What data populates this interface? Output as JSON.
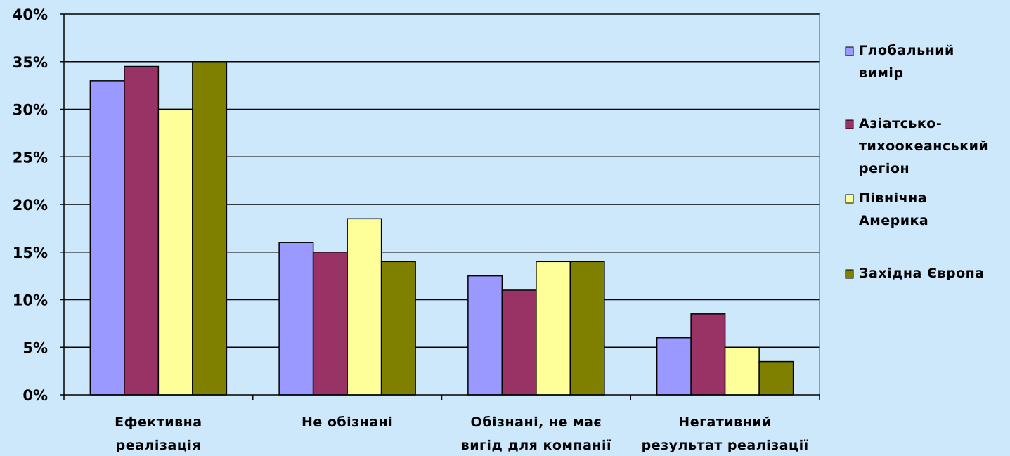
{
  "chart_data": {
    "type": "bar",
    "categories": [
      [
        "Ефективна",
        "реалізація"
      ],
      [
        "Не обізнані"
      ],
      [
        "Обізнані, не має",
        "вигід для компанії"
      ],
      [
        "Негативний",
        "результат реалізації"
      ]
    ],
    "series": [
      {
        "name": [
          "Глобальний",
          "вимір"
        ],
        "color": "#9999ff",
        "values": [
          33,
          16,
          12.5,
          6
        ]
      },
      {
        "name": [
          "Азіатсько-",
          "тихоокеанський",
          "регіон"
        ],
        "color": "#993366",
        "values": [
          34.5,
          15,
          11,
          8.5
        ]
      },
      {
        "name": [
          "Північна",
          "Америка"
        ],
        "color": "#ffff99",
        "values": [
          30,
          18.5,
          14,
          5
        ]
      },
      {
        "name": [
          "Західна Європа"
        ],
        "color": "#808000",
        "values": [
          35,
          14,
          14,
          3.5
        ]
      }
    ],
    "yticks": [
      "0%",
      "5%",
      "10%",
      "15%",
      "20%",
      "25%",
      "30%",
      "35%",
      "40%"
    ],
    "ylim": [
      0,
      40
    ],
    "grid": true,
    "legend": "right",
    "colors": {
      "background": "#cce8fa",
      "plot_background": "#cce8fa",
      "gridline": "#000000"
    }
  }
}
